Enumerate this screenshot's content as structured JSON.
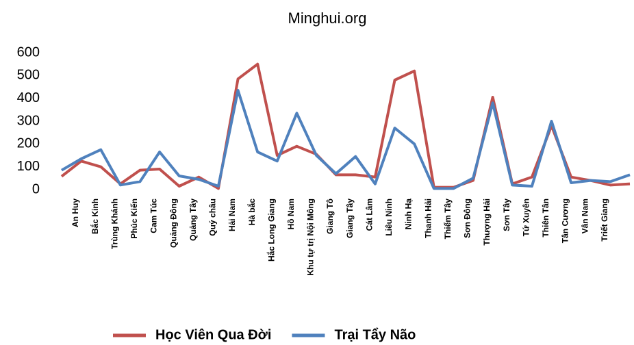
{
  "chart_data": {
    "type": "line",
    "title": "Minghui.org",
    "categories": [
      "An Huy",
      "Bắc Kinh",
      "Trùng Khánh",
      "Phúc Kiến",
      "Cam Túc",
      "Quảng Đông",
      "Quảng Tây",
      "Quý châu",
      "Hải Nam",
      "Hà bắc",
      "Hắc Long Giang",
      "Hồ Nam",
      "Khu tự trị Nội Mông",
      "Giang Tô",
      "Giang Tây",
      "Cát Lâm",
      "Liêu Ninh",
      "Ninh Hạ",
      "Thanh Hải",
      "Thiểm Tây",
      "Sơn Đông",
      "Thượng Hải",
      "Sơn Tây",
      "Tứ Xuyên",
      "Thiên Tân",
      "Tân Cương",
      "Vân Nam",
      "Triết Giang",
      null,
      null
    ],
    "series": [
      {
        "name": "Học Viên Qua Đời",
        "color": "#c0504d",
        "values": [
          58,
          125,
          100,
          25,
          85,
          90,
          15,
          55,
          5,
          485,
          550,
          150,
          190,
          155,
          65,
          65,
          55,
          480,
          520,
          10,
          10,
          40,
          405,
          25,
          55,
          280,
          55,
          40,
          20,
          25
        ]
      },
      {
        "name": "Trại Tẩy Não",
        "color": "#4f81bd",
        "values": [
          85,
          135,
          175,
          20,
          35,
          165,
          60,
          45,
          15,
          435,
          165,
          125,
          335,
          150,
          70,
          145,
          25,
          270,
          200,
          5,
          5,
          50,
          380,
          20,
          15,
          300,
          30,
          40,
          35,
          65
        ]
      }
    ],
    "ylim": [
      0,
      600
    ],
    "yticks": [
      0,
      100,
      200,
      300,
      400,
      500,
      600
    ],
    "grid": false,
    "legend": "bottom"
  }
}
